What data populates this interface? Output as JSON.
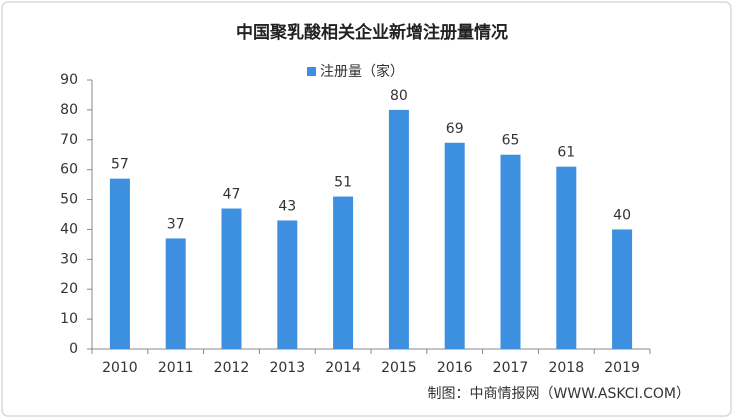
{
  "chart_data": {
    "type": "bar",
    "title": "中国聚乳酸相关企业新增注册量情况",
    "series": [
      {
        "name": "注册量（家）",
        "color": "#3d8fe0",
        "values": [
          57,
          37,
          47,
          43,
          51,
          80,
          69,
          65,
          61,
          40
        ]
      }
    ],
    "categories": [
      "2010",
      "2011",
      "2012",
      "2013",
      "2014",
      "2015",
      "2016",
      "2017",
      "2018",
      "2019"
    ],
    "ylim": [
      0,
      90
    ],
    "yticks": [
      0,
      10,
      20,
      30,
      40,
      50,
      60,
      70,
      80,
      90
    ],
    "legend": "top",
    "source": "制图：中商情报网（WWW.ASKCI.COM）"
  }
}
